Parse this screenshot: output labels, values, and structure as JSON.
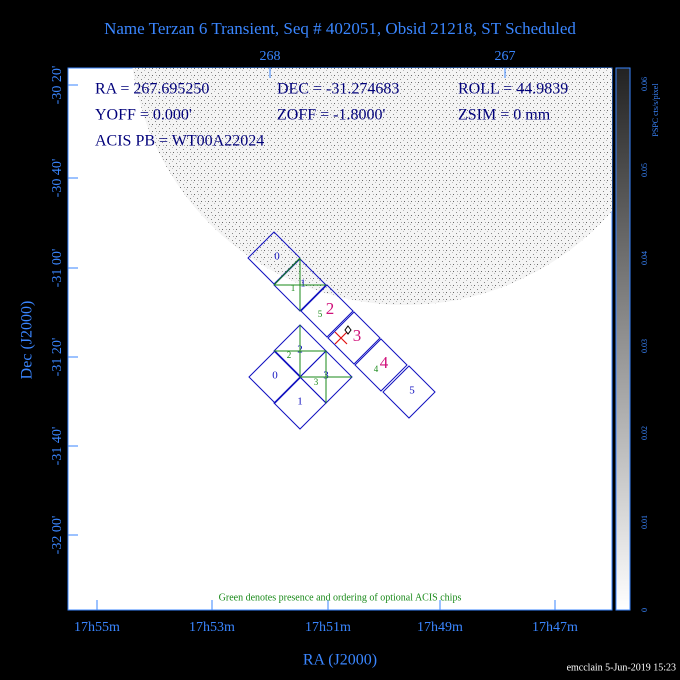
{
  "title": "Name Terzan 6 Transient, Seq # 402051, Obsid 21218, ST Scheduled",
  "top_axis": {
    "ticks": [
      "268",
      "267"
    ]
  },
  "left_axis": {
    "label": "Dec (J2000)",
    "ticks": [
      "-30 20'",
      "-30 40'",
      "-31 00'",
      "-31 20'",
      "-31 40'",
      "-32 00'"
    ]
  },
  "bottom_axis": {
    "label": "RA (J2000)",
    "ticks": [
      "17h55m",
      "17h53m",
      "17h51m",
      "17h49m",
      "17h47m"
    ]
  },
  "colorbar": {
    "label": "PSPC cts/s/pixel",
    "ticks": [
      "0",
      "0.01",
      "0.02",
      "0.03",
      "0.04",
      "0.05",
      "0.06"
    ]
  },
  "header": {
    "rows": [
      [
        "RA = 267.695250",
        "DEC = -31.274683",
        "ROLL = 44.9839"
      ],
      [
        "YOFF = 0.000'",
        "ZOFF = -1.8000'",
        "ZSIM = 0 mm"
      ],
      [
        "ACIS PB = WT00A22024"
      ]
    ]
  },
  "chips": {
    "acis_s": [
      "0",
      "1",
      "2",
      "3",
      "4",
      "5"
    ],
    "acis_i": [
      "2",
      "0",
      "3",
      "1"
    ],
    "optional": [
      "1",
      "5",
      "2",
      "3",
      "4"
    ]
  },
  "note": "Green denotes presence and ordering of optional ACIS chips",
  "footer": "emcclain  5-Jun-2019 15:23"
}
